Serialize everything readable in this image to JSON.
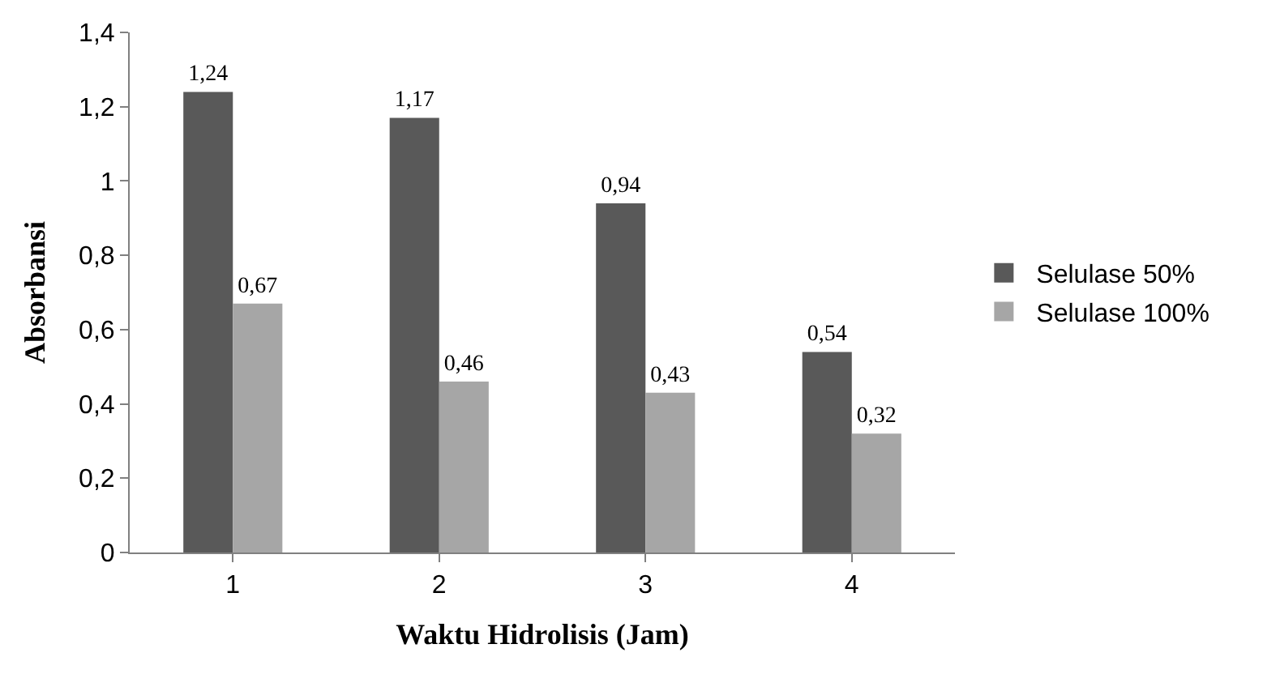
{
  "chart_data": {
    "type": "bar",
    "xlabel": "Waktu Hidrolisis (Jam)",
    "ylabel": "Absorbansi",
    "categories": [
      "1",
      "2",
      "3",
      "4"
    ],
    "series": [
      {
        "name": "Selulase 50%",
        "color": "#595959",
        "values": [
          1.24,
          1.17,
          0.94,
          0.54
        ],
        "value_labels": [
          "1,24",
          "1,17",
          "0,94",
          "0,54"
        ]
      },
      {
        "name": "Selulase 100%",
        "color": "#a6a6a6",
        "values": [
          0.67,
          0.46,
          0.43,
          0.32
        ],
        "value_labels": [
          "0,67",
          "0,46",
          "0,43",
          "0,32"
        ]
      }
    ],
    "ylim": [
      0,
      1.4
    ],
    "yticks": [
      0,
      {
        "value": 0.2,
        "label": "0,2"
      },
      {
        "value": 0.4,
        "label": "0,4"
      },
      {
        "value": 0.6,
        "label": "0,6"
      },
      {
        "value": 0.8,
        "label": "0,8"
      },
      1,
      {
        "value": 1.2,
        "label": "1,2"
      },
      {
        "value": 1.4,
        "label": "1,4"
      }
    ],
    "grid": false,
    "legend": "right"
  }
}
